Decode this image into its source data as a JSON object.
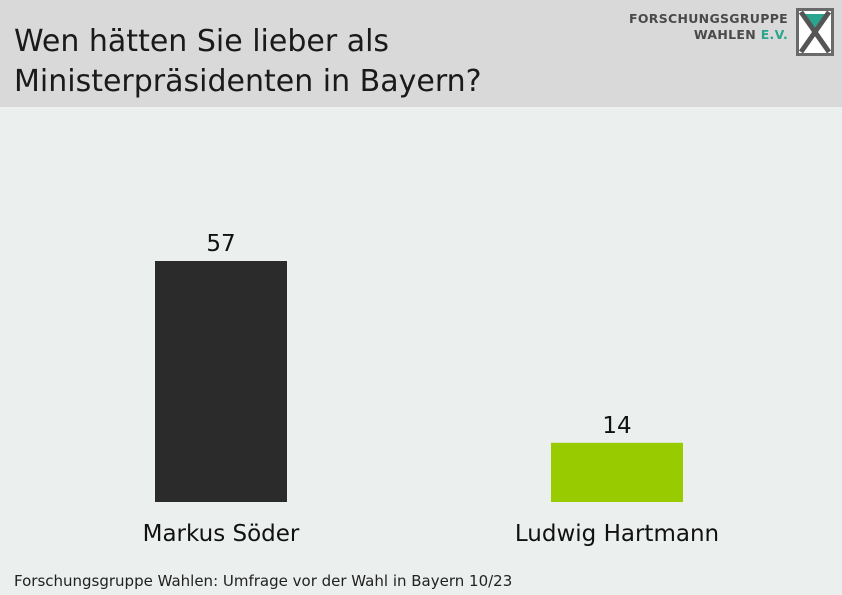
{
  "header": {
    "title_line1": "Wen hätten Sie lieber als",
    "title_line2": "Ministerpräsidenten in Bayern?"
  },
  "logo": {
    "line1": "FORSCHUNGSGRUPPE",
    "line2_a": "WAHLEN",
    "line2_b": "E.V.",
    "accent_color": "#2aa58e"
  },
  "chart_data": {
    "type": "bar",
    "categories": [
      "Markus Söder",
      "Ludwig Hartmann"
    ],
    "values": [
      57,
      14
    ],
    "colors": [
      "#2b2b2b",
      "#99cc00"
    ],
    "ylim": [
      0,
      57
    ],
    "grid": false,
    "legend": "none"
  },
  "footer": {
    "source": "Forschungsgruppe Wahlen: Umfrage vor der Wahl in Bayern 10/23"
  }
}
